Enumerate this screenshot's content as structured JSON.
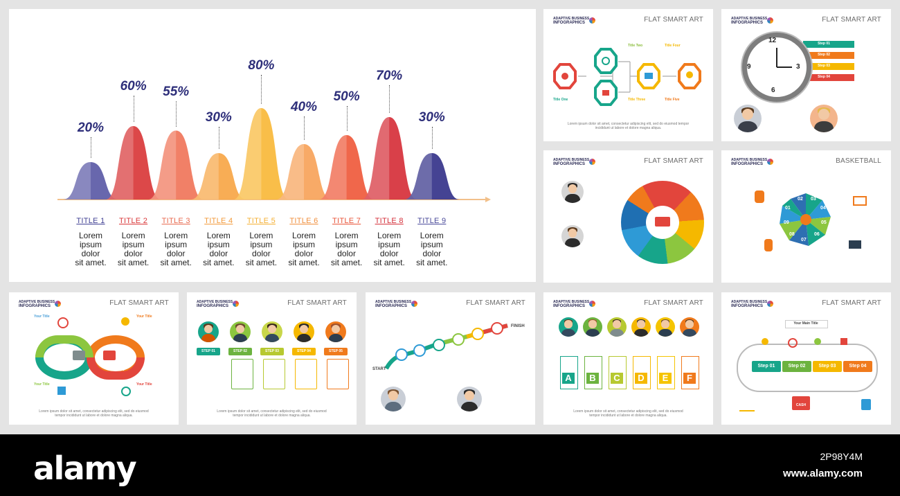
{
  "main_slide": {
    "columns": [
      {
        "title": "TITLE 1",
        "pct": "20%",
        "text": [
          "Lorem",
          "ipsum",
          "dolor",
          "sit amet."
        ],
        "color": "#5b5aa6",
        "title_color": "#3f3f93"
      },
      {
        "title": "TITLE 2",
        "pct": "60%",
        "text": [
          "Lorem",
          "ipsum",
          "dolor",
          "sit amet."
        ],
        "color": "#d9383a",
        "title_color": "#d9383a"
      },
      {
        "title": "TITLE 3",
        "pct": "55%",
        "text": [
          "Lorem",
          "ipsum",
          "dolor",
          "sit amet."
        ],
        "color": "#f0755a",
        "title_color": "#e86a4f"
      },
      {
        "title": "TITLE 4",
        "pct": "30%",
        "text": [
          "Lorem",
          "ipsum",
          "dolor",
          "sit amet."
        ],
        "color": "#f7a647",
        "title_color": "#f29a3b"
      },
      {
        "title": "TITLE 5",
        "pct": "80%",
        "text": [
          "Lorem",
          "ipsum",
          "dolor",
          "sit amet."
        ],
        "color": "#f9b93a",
        "title_color": "#f4b034"
      },
      {
        "title": "TITLE 6",
        "pct": "40%",
        "text": [
          "Lorem",
          "ipsum",
          "dolor",
          "sit amet."
        ],
        "color": "#f7a35a",
        "title_color": "#f08f3d"
      },
      {
        "title": "TITLE 7",
        "pct": "50%",
        "text": [
          "Lorem",
          "ipsum",
          "dolor",
          "sit amet."
        ],
        "color": "#ef5a3c",
        "title_color": "#e9553a"
      },
      {
        "title": "TITLE 8",
        "pct": "70%",
        "text": [
          "Lorem",
          "ipsum",
          "dolor",
          "sit amet."
        ],
        "color": "#d6303a",
        "title_color": "#d4303a"
      },
      {
        "title": "TITLE 9",
        "pct": "30%",
        "text": [
          "Lorem",
          "ipsum",
          "dolor",
          "sit amet."
        ],
        "color": "#35338a",
        "title_color": "#4a4a9a"
      }
    ]
  },
  "brand": {
    "line1": "ADAPTIVE BUSINESS",
    "line2": "INFOGRAPHICS"
  },
  "slides": {
    "flow": {
      "title": "FLAT SMART ART",
      "labels": [
        "Title Two",
        "Title Four",
        "Title One",
        "Title Three",
        "Title Five"
      ],
      "caption": [
        "Lorem ipsum dolor sit amet, consectetur adipiscing elit, sed do eiusmod tempor",
        "incididunt ut labore et dolore magna aliqua."
      ]
    },
    "clock": {
      "title": "FLAT SMART ART",
      "numbers": [
        "12",
        "3",
        "6",
        "9"
      ],
      "steps": [
        "Step 01",
        "Step 02",
        "Step 03",
        "Step 04"
      ]
    },
    "spiral": {
      "title": "FLAT SMART ART"
    },
    "basketball": {
      "title": "BASKETBALL",
      "numbers": [
        "01",
        "02",
        "03",
        "04",
        "05",
        "06",
        "07",
        "08",
        "09"
      ]
    },
    "loop": {
      "title": "FLAT SMART ART",
      "labels": [
        "Your Title",
        "Your Title",
        "Your Title",
        "Your Title"
      ],
      "numbers": [
        "01",
        "02",
        "03",
        "04"
      ],
      "caption": [
        "Lorem ipsum dolor sit amet, consectetur adipiscing elit, sed do eiusmod",
        "tempor incididunt ut labore et dolore magna aliqua."
      ]
    },
    "steps": {
      "title": "FLAT SMART ART",
      "steps": [
        "STEP 01",
        "STEP 02",
        "STEP 03",
        "STEP 04",
        "STEP 05"
      ],
      "caption": [
        "Lorem ipsum dolor sit amet, consectetur adipiscing elit, sed do eiusmod",
        "tempor incididunt ut labore et dolore magna aliqua."
      ]
    },
    "road": {
      "title": "FLAT SMART ART",
      "start": "START",
      "finish": "FINISH"
    },
    "letters": {
      "title": "FLAT SMART ART",
      "letters": [
        "A",
        "B",
        "C",
        "D",
        "E",
        "F"
      ],
      "caption": [
        "Lorem ipsum dolor sit amet, consectetur adipiscing elit, sed do eiusmod",
        "tempor incididunt ut labore et dolore magna aliqua."
      ]
    },
    "process": {
      "title": "FLAT SMART ART",
      "main_title": "Your Main Title",
      "steps": [
        "Step 01",
        "Step 02",
        "Step 03",
        "Step 04"
      ],
      "cash": "CASH"
    }
  },
  "footer": {
    "logo": "alamy",
    "image_id": "2P98Y4M",
    "url": "www.alamy.com"
  }
}
